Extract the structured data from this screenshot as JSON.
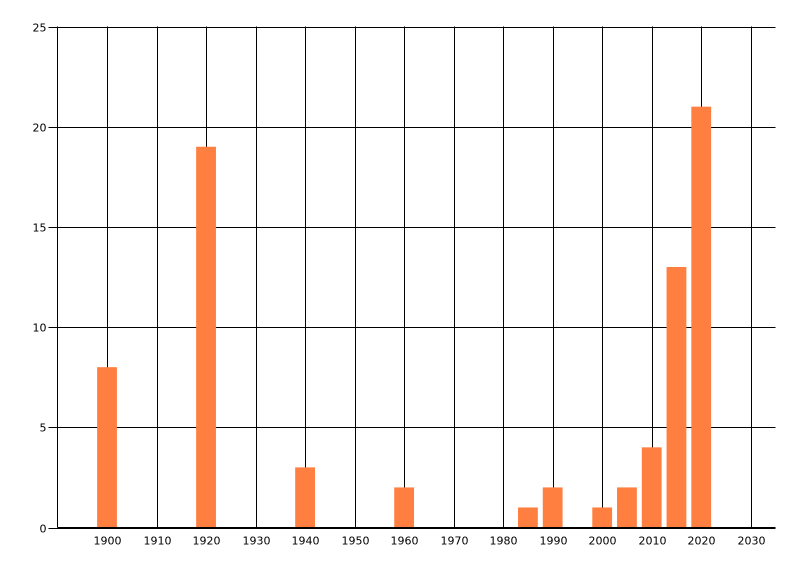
{
  "chart_data": {
    "type": "bar",
    "title": "",
    "xlabel": "",
    "ylabel": "",
    "x": [
      1900,
      1920,
      1940,
      1960,
      1985,
      1990,
      2000,
      2005,
      2010,
      2015,
      2020
    ],
    "values": [
      8,
      19,
      3,
      2,
      1,
      2,
      1,
      2,
      4,
      13,
      21
    ],
    "xlim": [
      1890,
      2035
    ],
    "ylim": [
      0,
      25
    ],
    "x_ticks": [
      "1900",
      "1910",
      "1920",
      "1930",
      "1940",
      "1950",
      "1960",
      "1970",
      "1980",
      "1990",
      "2000",
      "2010",
      "2020",
      "2030"
    ],
    "y_ticks": [
      "0",
      "5",
      "10",
      "15",
      "20",
      "25"
    ],
    "bar_width_years": 4,
    "grid": true,
    "legend": "none",
    "bar_color": "#ff7f41"
  }
}
